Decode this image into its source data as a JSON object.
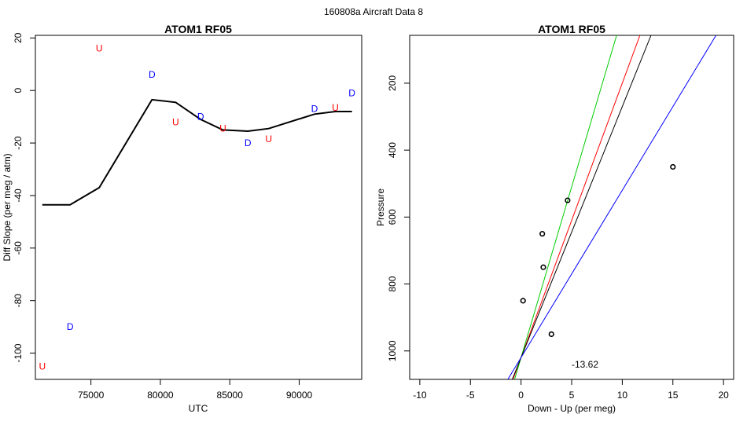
{
  "suptitle": "160808a   Aircraft Data 8",
  "colors": {
    "up": "#ff0000",
    "down": "#0000ff",
    "line": "#000000",
    "red_line": "#ff0000",
    "green_line": "#00cc00",
    "black_line": "#000000",
    "blue_line": "#0000ff"
  },
  "chart_data": [
    {
      "type": "scatter",
      "title": "ATOM1 RF05",
      "xlabel": "UTC",
      "ylabel": "Diff Slope (per meg / atm)",
      "xlim": [
        71000,
        94500
      ],
      "ylim": [
        -110,
        21
      ],
      "x_ticks": [
        75000,
        80000,
        85000,
        90000
      ],
      "y_ticks": [
        20,
        0,
        -20,
        -40,
        -60,
        -80,
        -100
      ],
      "y_tick_labels": [
        "20",
        "0",
        "-20",
        "-40",
        "-60",
        "-80",
        "-100"
      ],
      "points": [
        {
          "label": "U",
          "group": "up",
          "x": 71500,
          "y": -105
        },
        {
          "label": "D",
          "group": "down",
          "x": 73500,
          "y": -90
        },
        {
          "label": "U",
          "group": "up",
          "x": 75600,
          "y": 16
        },
        {
          "label": "D",
          "group": "down",
          "x": 79400,
          "y": 6
        },
        {
          "label": "U",
          "group": "up",
          "x": 81100,
          "y": -12
        },
        {
          "label": "D",
          "group": "down",
          "x": 82900,
          "y": -10
        },
        {
          "label": "U",
          "group": "up",
          "x": 84500,
          "y": -14.5
        },
        {
          "label": "D",
          "group": "down",
          "x": 86300,
          "y": -20
        },
        {
          "label": "U",
          "group": "up",
          "x": 87800,
          "y": -18.5
        },
        {
          "label": "D",
          "group": "down",
          "x": 91100,
          "y": -7
        },
        {
          "label": "U",
          "group": "up",
          "x": 92600,
          "y": -6.5
        },
        {
          "label": "D",
          "group": "down",
          "x": 93800,
          "y": -1
        }
      ],
      "smooth_line": {
        "x": [
          71500,
          73500,
          75600,
          79400,
          81100,
          82900,
          84500,
          86300,
          87800,
          91100,
          92600,
          93800
        ],
        "y": [
          -43.5,
          -43.5,
          -37,
          -3.5,
          -4.5,
          -11,
          -15,
          -15.5,
          -14.5,
          -9,
          -8,
          -8
        ]
      }
    },
    {
      "type": "scatter",
      "title": "ATOM1 RF05",
      "xlabel": "Down - Up (per meg)",
      "ylabel": "Pressure",
      "xlim": [
        -11,
        21
      ],
      "ylim_reversed": [
        1085,
        57
      ],
      "x_ticks": [
        -10,
        -5,
        0,
        5,
        10,
        15,
        20
      ],
      "x_tick_labels": [
        "-10",
        "-5",
        "0",
        "5",
        "10",
        "15",
        "20"
      ],
      "y_ticks": [
        200,
        400,
        600,
        800,
        1000
      ],
      "y_tick_labels": [
        "200",
        "400",
        "600",
        "800",
        "1000"
      ],
      "points": [
        {
          "x": 15.0,
          "y": 450
        },
        {
          "x": 4.6,
          "y": 550
        },
        {
          "x": 2.1,
          "y": 650
        },
        {
          "x": 2.2,
          "y": 750
        },
        {
          "x": 0.2,
          "y": 850
        },
        {
          "x": 3.0,
          "y": 950
        }
      ],
      "annotation": {
        "text": "-13.62",
        "x": 5.0,
        "y": 1040
      },
      "lines": [
        {
          "color_key": "red_line",
          "x0": 0,
          "y0": 1020,
          "slope": -82
        },
        {
          "color_key": "green_line",
          "x0": 0,
          "y0": 1020,
          "slope": -102
        },
        {
          "color_key": "black_line",
          "x0": 0,
          "y0": 1020,
          "slope": -75
        },
        {
          "color_key": "blue_line",
          "x0": 0,
          "y0": 1020,
          "slope": -50
        }
      ]
    }
  ]
}
